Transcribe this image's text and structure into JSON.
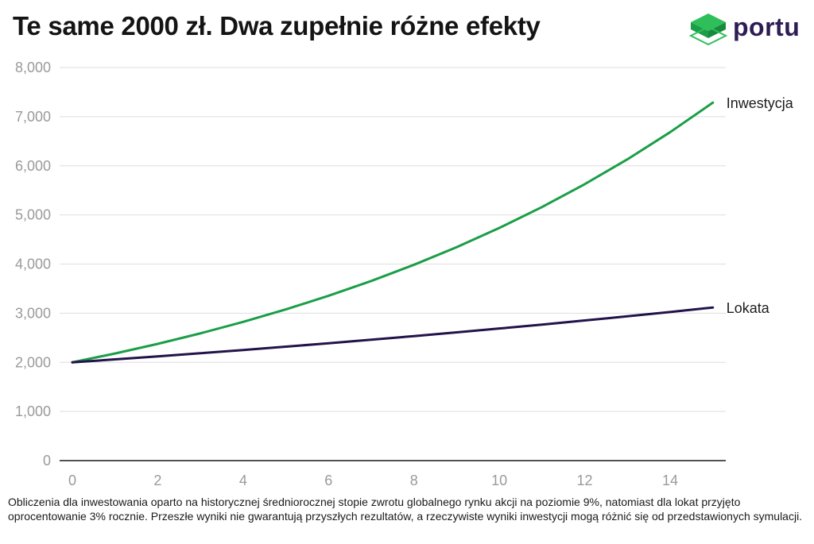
{
  "header": {
    "title": "Te same 2000 zł. Dwa zupełnie różne efekty",
    "brand": "portu",
    "brand_icon": "portu-cube-logo-icon"
  },
  "colors": {
    "inwestycja": "#1a9e47",
    "lokata": "#22134a",
    "grid": "#dedede",
    "axis": "#1a1a1a",
    "tick": "#9a9a9a",
    "logo_top": "#2fbf5a",
    "logo_side": "#178a3e",
    "brand_text": "#2d1d54"
  },
  "chart_data": {
    "type": "line",
    "title": "Te same 2000 zł. Dwa zupełnie różne efekty",
    "xlabel": "",
    "ylabel": "",
    "xlim": [
      0,
      15
    ],
    "ylim": [
      0,
      8000
    ],
    "x_ticks": [
      0,
      2,
      4,
      6,
      8,
      10,
      12,
      14
    ],
    "x_tick_labels": [
      "0",
      "2",
      "4",
      "6",
      "8",
      "10",
      "12",
      "14"
    ],
    "y_ticks": [
      0,
      1000,
      2000,
      3000,
      4000,
      5000,
      6000,
      7000,
      8000
    ],
    "y_tick_labels": [
      "0",
      "1,000",
      "2,000",
      "3,000",
      "4,000",
      "5,000",
      "6,000",
      "7,000",
      "8,000"
    ],
    "grid": "horizontal",
    "legend": "labels at line ends (right)",
    "x": [
      0,
      1,
      2,
      3,
      4,
      5,
      6,
      7,
      8,
      9,
      10,
      11,
      12,
      13,
      14,
      15
    ],
    "series": [
      {
        "name": "Inwestycja",
        "values": [
          2000,
          2180,
          2376,
          2590,
          2823,
          3077,
          3354,
          3656,
          3985,
          4344,
          4735,
          5161,
          5626,
          6132,
          6684,
          7285
        ]
      },
      {
        "name": "Lokata",
        "values": [
          2000,
          2060,
          2122,
          2185,
          2251,
          2319,
          2388,
          2460,
          2534,
          2610,
          2688,
          2768,
          2852,
          2937,
          3025,
          3116
        ]
      }
    ]
  },
  "footnote": "Obliczenia dla inwestowania oparto na historycznej średniorocznej stopie zwrotu globalnego rynku akcji na poziomie 9%, natomiast dla lokat przyjęto oprocentowanie 3% rocznie. Przeszłe wyniki nie gwarantują przyszłych rezultatów, a rzeczywiste wyniki inwestycji mogą różnić się od przedstawionych symulacji."
}
